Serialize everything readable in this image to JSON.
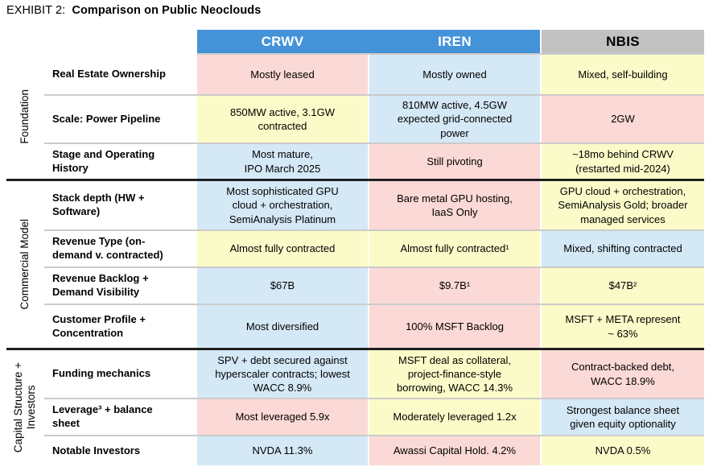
{
  "title": {
    "prefix": "EXHIBIT 2:",
    "text": "Comparison on Public Neoclouds"
  },
  "colors": {
    "header_blue": "#4493d9",
    "header_gray": "#c1c1c1",
    "pink": "#fbd9d6",
    "yellow": "#fbfbc9",
    "blue": "#d4e8f6",
    "row_separator": "#cbcbcb",
    "group_separator": "#1f1f1f"
  },
  "columns": [
    {
      "id": "crwv",
      "label": "CRWV"
    },
    {
      "id": "iren",
      "label": "IREN"
    },
    {
      "id": "nbis",
      "label": "NBIS"
    }
  ],
  "groups": [
    {
      "label": "Foundation",
      "rows": [
        {
          "label": "Real Estate Ownership",
          "cells": [
            {
              "text": "Mostly leased",
              "bg": "pink"
            },
            {
              "text": "Mostly owned",
              "bg": "blue"
            },
            {
              "text": "Mixed, self-building",
              "bg": "yellow"
            }
          ]
        },
        {
          "label": "Scale: Power Pipeline",
          "cells": [
            {
              "text": "850MW active, 3.1GW\ncontracted",
              "bg": "yellow"
            },
            {
              "text": "810MW active, 4.5GW\nexpected grid-connected\npower",
              "bg": "blue"
            },
            {
              "text": "2GW",
              "bg": "pink"
            }
          ]
        },
        {
          "label": "Stage and Operating\nHistory",
          "cells": [
            {
              "text": "Most mature,\nIPO March 2025",
              "bg": "blue"
            },
            {
              "text": "Still pivoting",
              "bg": "pink"
            },
            {
              "text": "~18mo behind CRWV\n(restarted mid-2024)",
              "bg": "yellow"
            }
          ]
        }
      ]
    },
    {
      "label": "Commercial Model",
      "rows": [
        {
          "label": "Stack depth (HW +\nSoftware)",
          "cells": [
            {
              "text": "Most sophisticated GPU\ncloud + orchestration,\nSemiAnalysis Platinum",
              "bg": "blue"
            },
            {
              "text": "Bare metal GPU hosting,\nIaaS Only",
              "bg": "pink"
            },
            {
              "text": "GPU cloud + orchestration,\nSemiAnalysis Gold; broader\nmanaged services",
              "bg": "yellow"
            }
          ]
        },
        {
          "label": "Revenue Type (on-\ndemand v. contracted)",
          "cells": [
            {
              "text": "Almost fully contracted",
              "bg": "yellow"
            },
            {
              "text": "Almost fully contracted¹",
              "bg": "yellow"
            },
            {
              "text": "Mixed, shifting contracted",
              "bg": "blue"
            }
          ]
        },
        {
          "label": "Revenue Backlog +\nDemand Visibility",
          "cells": [
            {
              "text": "$67B",
              "bg": "blue"
            },
            {
              "text": "$9.7B¹",
              "bg": "pink"
            },
            {
              "text": "$47B²",
              "bg": "yellow"
            }
          ]
        },
        {
          "label": "Customer Profile +\nConcentration",
          "cells": [
            {
              "text": "Most diversified",
              "bg": "blue"
            },
            {
              "text": "100% MSFT Backlog",
              "bg": "pink"
            },
            {
              "text": "MSFT + META represent\n~ 63%",
              "bg": "yellow"
            }
          ]
        }
      ]
    },
    {
      "label": "Capital Structure +\nInvestors",
      "rows": [
        {
          "label": "Funding mechanics",
          "cells": [
            {
              "text": "SPV + debt secured against\nhyperscaler contracts; lowest\nWACC 8.9%",
              "bg": "blue"
            },
            {
              "text": "MSFT deal as collateral,\nproject-finance-style\nborrowing, WACC 14.3%",
              "bg": "yellow"
            },
            {
              "text": "Contract-backed debt,\nWACC 18.9%",
              "bg": "pink"
            }
          ]
        },
        {
          "label": "Leverage³ + balance\nsheet",
          "cells": [
            {
              "text": "Most leveraged 5.9x",
              "bg": "pink"
            },
            {
              "text": "Moderately leveraged 1.2x",
              "bg": "yellow"
            },
            {
              "text": "Strongest balance sheet\ngiven equity optionality",
              "bg": "blue"
            }
          ]
        },
        {
          "label": "Notable Investors",
          "cells": [
            {
              "text": "NVDA 11.3%",
              "bg": "blue"
            },
            {
              "text": "Awassi Capital Hold. 4.2%",
              "bg": "pink"
            },
            {
              "text": "NVDA 0.5%",
              "bg": "yellow"
            }
          ]
        }
      ]
    }
  ]
}
